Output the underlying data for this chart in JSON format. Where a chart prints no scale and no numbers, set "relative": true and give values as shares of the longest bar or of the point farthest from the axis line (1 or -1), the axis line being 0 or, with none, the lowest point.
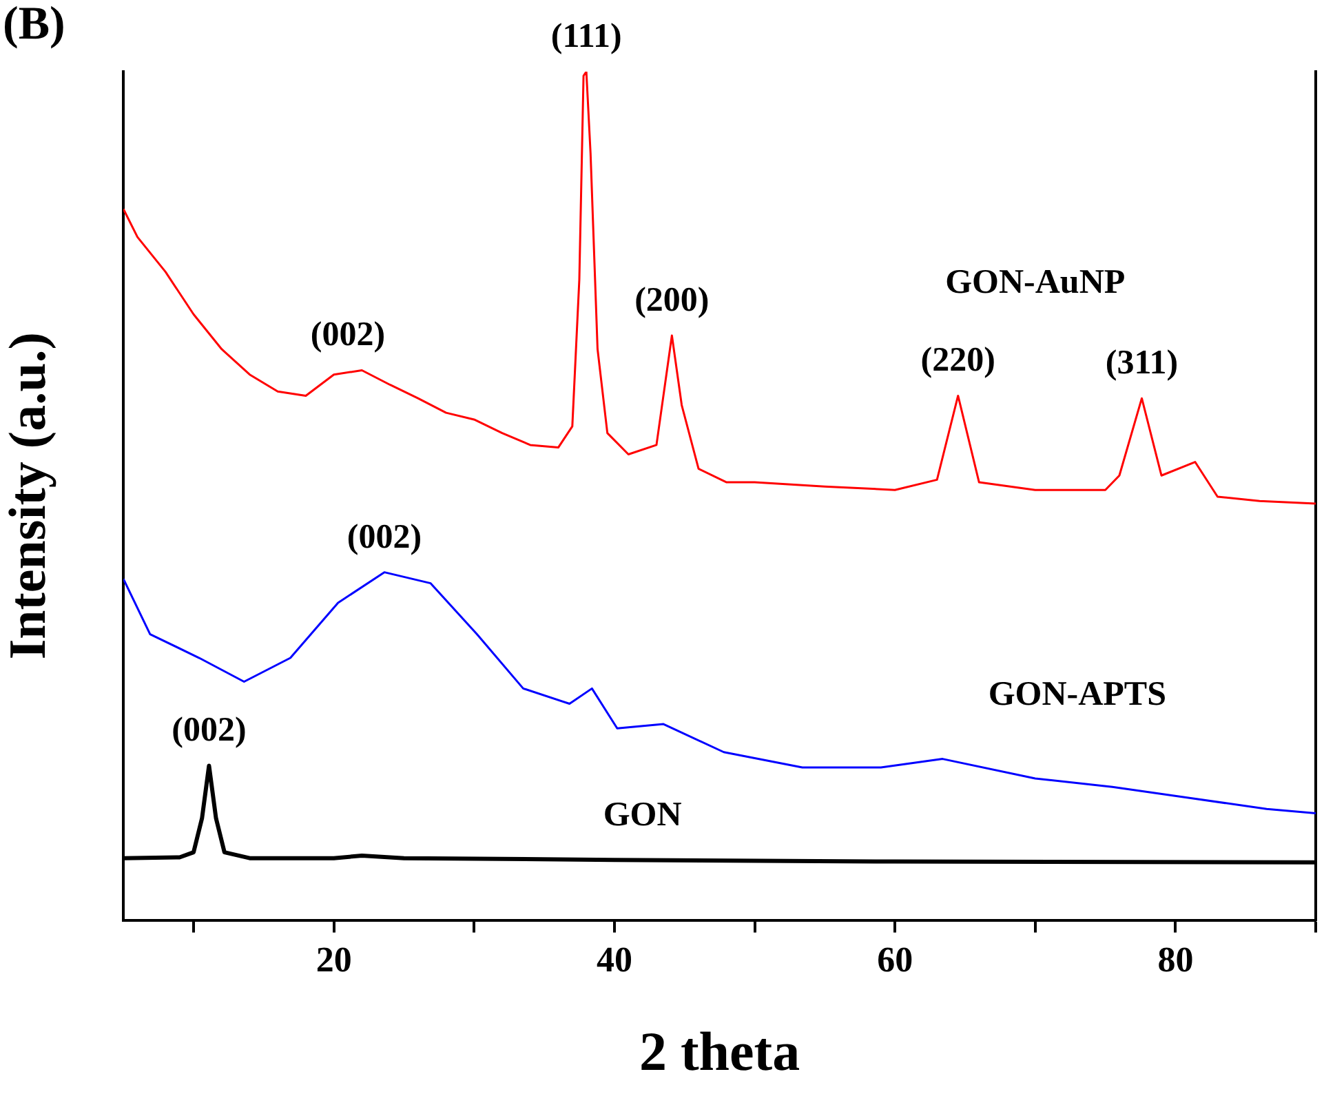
{
  "chart_data": {
    "type": "line",
    "title": "(B)",
    "xlabel": "2 theta",
    "ylabel": "Intensity (a.u.)",
    "relative": true,
    "xlim": [
      5,
      90
    ],
    "xticks": [
      {
        "value": 10,
        "label": null
      },
      20,
      {
        "value": 30,
        "label": null
      },
      40,
      {
        "value": 50,
        "label": null
      },
      60,
      {
        "value": 70,
        "label": null
      },
      80,
      {
        "value": 90,
        "label": null
      }
    ],
    "grid": false,
    "legend": false,
    "marker": "none",
    "line_style": "solid",
    "series": [
      {
        "name": "GON-AuNP",
        "color": "#ff0000",
        "x": [
          5,
          6,
          8,
          10,
          12,
          14,
          16,
          18,
          20,
          22,
          24,
          26,
          28,
          30,
          32,
          34,
          36,
          37,
          37.5,
          37.8,
          38,
          38.3,
          38.8,
          39.5,
          41,
          43,
          44.1,
          44.8,
          46,
          48,
          50,
          55,
          60,
          63,
          64.5,
          66,
          70,
          75,
          76,
          77.6,
          79,
          81.4,
          83,
          86,
          90
        ],
        "values": [
          0.838,
          0.805,
          0.764,
          0.714,
          0.673,
          0.643,
          0.623,
          0.618,
          0.643,
          0.648,
          0.631,
          0.615,
          0.598,
          0.59,
          0.574,
          0.56,
          0.557,
          0.582,
          0.755,
          0.995,
          1,
          0.904,
          0.673,
          0.574,
          0.549,
          0.56,
          0.689,
          0.607,
          0.532,
          0.516,
          0.516,
          0.511,
          0.507,
          0.519,
          0.618,
          0.516,
          0.507,
          0.507,
          0.524,
          0.615,
          0.524,
          0.54,
          0.499,
          0.494,
          0.491
        ]
      },
      {
        "name": "GON-APTS",
        "color": "#0000ff",
        "x": [
          5,
          6.9,
          10.4,
          13.6,
          16.9,
          20.3,
          23.6,
          26.9,
          30.2,
          33.5,
          36.8,
          38.4,
          40.2,
          43.5,
          47.8,
          53.4,
          59,
          63.4,
          70,
          75.5,
          81,
          86.5,
          90
        ],
        "values": [
          0.402,
          0.337,
          0.309,
          0.281,
          0.309,
          0.374,
          0.41,
          0.397,
          0.337,
          0.273,
          0.255,
          0.273,
          0.226,
          0.231,
          0.198,
          0.18,
          0.18,
          0.19,
          0.167,
          0.157,
          0.144,
          0.131,
          0.126
        ]
      },
      {
        "name": "GON",
        "color": "#000000",
        "x": [
          5,
          9,
          10,
          10.6,
          11.1,
          11.6,
          12.2,
          14,
          20,
          22,
          25,
          40,
          60,
          90
        ],
        "values": [
          0.073,
          0.074,
          0.08,
          0.12,
          0.182,
          0.12,
          0.08,
          0.073,
          0.073,
          0.076,
          0.073,
          0.071,
          0.069,
          0.068
        ]
      }
    ],
    "annotations": [
      {
        "text": "(111)",
        "x": 38,
        "y": 1
      },
      {
        "text": "(002)",
        "x": 21,
        "y": 0.648
      },
      {
        "text": "(200)",
        "x": 44.1,
        "y": 0.689
      },
      {
        "text": "(220)",
        "x": 64.5,
        "y": 0.618
      },
      {
        "text": "(311)",
        "x": 77.6,
        "y": 0.615
      },
      {
        "text": "(002)",
        "x": 23.6,
        "y": 0.41
      },
      {
        "text": "(002)",
        "x": 11.1,
        "y": 0.182
      }
    ]
  }
}
